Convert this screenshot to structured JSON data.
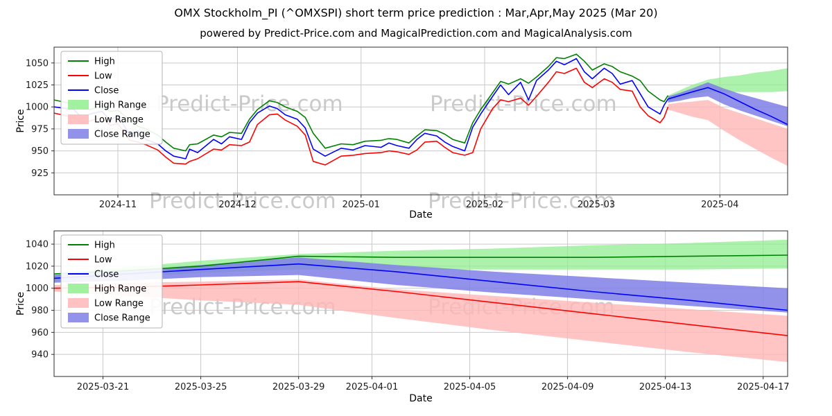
{
  "chart_data": [
    {
      "type": "line",
      "title": "OMX Stockholm_PI (^OMXSPI) short term price prediction : Mar,Apr,May 2025 (Mar 20)",
      "subtitle": "powered by Predict-Price.com and MagicalPrediction.com and MagicalAnalysis.com",
      "watermark": "Predict-Price.com",
      "xlabel": "Date",
      "ylabel": "Price",
      "xlim": [
        "2024-10-16",
        "2025-04-18"
      ],
      "ylim": [
        900,
        1068
      ],
      "yticks": [
        925,
        950,
        975,
        1000,
        1025,
        1050
      ],
      "xticks": [
        {
          "t": "2024-11-01",
          "label": "2024-11"
        },
        {
          "t": "2024-12-01",
          "label": "2024-12"
        },
        {
          "t": "2025-01-01",
          "label": "2025-01"
        },
        {
          "t": "2025-02-01",
          "label": "2025-02"
        },
        {
          "t": "2025-03-01",
          "label": "2025-03"
        },
        {
          "t": "2025-04-01",
          "label": "2025-04"
        }
      ],
      "grid": true,
      "legend_position": "upper left",
      "legend": [
        {
          "label": "High",
          "swatch": "line",
          "color": "#008000"
        },
        {
          "label": "Low",
          "swatch": "line",
          "color": "#ff0000"
        },
        {
          "label": "Close",
          "swatch": "line",
          "color": "#0000ff"
        },
        {
          "label": "High Range",
          "swatch": "patch",
          "color": "#90ee90"
        },
        {
          "label": "Low Range",
          "swatch": "patch",
          "color": "#ffb6b6"
        },
        {
          "label": "Close Range",
          "swatch": "patch",
          "color": "#7f7fe8"
        }
      ],
      "series": [
        {
          "name": "High Range",
          "kind": "band",
          "color": "#90ee90",
          "opacity": 0.75,
          "x": [
            "2025-03-19",
            "2025-03-22",
            "2025-03-25",
            "2025-03-29",
            "2025-04-02",
            "2025-04-06",
            "2025-04-10",
            "2025-04-14",
            "2025-04-18"
          ],
          "upper": [
            1013,
            1019,
            1025,
            1031,
            1034,
            1036,
            1039,
            1041,
            1044
          ],
          "lower": [
            1006,
            1010,
            1014,
            1017,
            1017,
            1017,
            1017,
            1017,
            1018
          ]
        },
        {
          "name": "Low Range",
          "kind": "band",
          "color": "#ffb6b6",
          "opacity": 0.8,
          "x": [
            "2025-03-19",
            "2025-03-22",
            "2025-03-25",
            "2025-03-29",
            "2025-04-02",
            "2025-04-06",
            "2025-04-10",
            "2025-04-14",
            "2025-04-18"
          ],
          "upper": [
            1003,
            1005,
            1006,
            1008,
            999,
            993,
            987,
            981,
            975
          ],
          "lower": [
            997,
            993,
            989,
            985,
            973,
            962,
            952,
            942,
            933
          ]
        },
        {
          "name": "Close Range",
          "kind": "band",
          "color": "#7f7fe8",
          "opacity": 0.85,
          "x": [
            "2025-03-19",
            "2025-03-22",
            "2025-03-25",
            "2025-03-29",
            "2025-04-02",
            "2025-04-06",
            "2025-04-10",
            "2025-04-14",
            "2025-04-18"
          ],
          "upper": [
            1012,
            1016,
            1021,
            1028,
            1021,
            1015,
            1010,
            1005,
            1000
          ],
          "lower": [
            1005,
            1007,
            1010,
            1012,
            1003,
            996,
            990,
            984,
            978
          ]
        },
        {
          "name": "High",
          "kind": "line",
          "color": "#008000",
          "x": [
            "2024-10-16",
            "2024-10-21",
            "2024-10-23",
            "2024-10-25",
            "2024-10-28",
            "2024-10-30",
            "2024-11-01",
            "2024-11-04",
            "2024-11-06",
            "2024-11-08",
            "2024-11-11",
            "2024-11-13",
            "2024-11-15",
            "2024-11-18",
            "2024-11-19",
            "2024-11-21",
            "2024-11-25",
            "2024-11-27",
            "2024-11-29",
            "2024-12-02",
            "2024-12-04",
            "2024-12-06",
            "2024-12-09",
            "2024-12-11",
            "2024-12-13",
            "2024-12-16",
            "2024-12-18",
            "2024-12-20",
            "2024-12-23",
            "2024-12-27",
            "2024-12-30",
            "2025-01-02",
            "2025-01-06",
            "2025-01-08",
            "2025-01-10",
            "2025-01-13",
            "2025-01-15",
            "2025-01-17",
            "2025-01-20",
            "2025-01-22",
            "2025-01-24",
            "2025-01-27",
            "2025-01-29",
            "2025-01-31",
            "2025-02-03",
            "2025-02-05",
            "2025-02-07",
            "2025-02-10",
            "2025-02-12",
            "2025-02-14",
            "2025-02-17",
            "2025-02-19",
            "2025-02-21",
            "2025-02-24",
            "2025-02-26",
            "2025-02-28",
            "2025-03-03",
            "2025-03-05",
            "2025-03-07",
            "2025-03-10",
            "2025-03-12",
            "2025-03-14",
            "2025-03-17",
            "2025-03-18",
            "2025-03-19"
          ],
          "y": [
            1008,
            1003,
            1000,
            997,
            1001,
            995,
            996,
            985,
            978,
            975,
            968,
            960,
            953,
            950,
            957,
            958,
            968,
            966,
            971,
            970,
            986,
            997,
            1007,
            1005,
            1000,
            995,
            988,
            970,
            953,
            958,
            957,
            961,
            962,
            964,
            963,
            959,
            967,
            974,
            973,
            969,
            963,
            959,
            982,
            997,
            1016,
            1029,
            1026,
            1032,
            1027,
            1034,
            1046,
            1056,
            1055,
            1060,
            1052,
            1042,
            1049,
            1046,
            1040,
            1035,
            1030,
            1018,
            1008,
            1006,
            1013
          ]
        },
        {
          "name": "Low",
          "kind": "line",
          "color": "#ff0000",
          "x": [
            "2024-10-16",
            "2024-10-21",
            "2024-10-23",
            "2024-10-25",
            "2024-10-28",
            "2024-10-30",
            "2024-11-01",
            "2024-11-04",
            "2024-11-06",
            "2024-11-08",
            "2024-11-11",
            "2024-11-13",
            "2024-11-15",
            "2024-11-18",
            "2024-11-19",
            "2024-11-21",
            "2024-11-25",
            "2024-11-27",
            "2024-11-29",
            "2024-12-02",
            "2024-12-04",
            "2024-12-06",
            "2024-12-09",
            "2024-12-11",
            "2024-12-13",
            "2024-12-16",
            "2024-12-18",
            "2024-12-20",
            "2024-12-23",
            "2024-12-27",
            "2024-12-30",
            "2025-01-02",
            "2025-01-06",
            "2025-01-08",
            "2025-01-10",
            "2025-01-13",
            "2025-01-15",
            "2025-01-17",
            "2025-01-20",
            "2025-01-22",
            "2025-01-24",
            "2025-01-27",
            "2025-01-29",
            "2025-01-31",
            "2025-02-03",
            "2025-02-05",
            "2025-02-07",
            "2025-02-10",
            "2025-02-12",
            "2025-02-14",
            "2025-02-17",
            "2025-02-19",
            "2025-02-21",
            "2025-02-24",
            "2025-02-26",
            "2025-02-28",
            "2025-03-03",
            "2025-03-05",
            "2025-03-07",
            "2025-03-10",
            "2025-03-12",
            "2025-03-14",
            "2025-03-17",
            "2025-03-18",
            "2025-03-19"
          ],
          "y": [
            993,
            988,
            981,
            984,
            988,
            979,
            981,
            962,
            960,
            957,
            951,
            943,
            936,
            935,
            938,
            941,
            952,
            951,
            957,
            956,
            960,
            980,
            991,
            992,
            985,
            978,
            968,
            938,
            934,
            944,
            945,
            947,
            948,
            950,
            949,
            946,
            951,
            960,
            961,
            954,
            948,
            945,
            948,
            975,
            998,
            1008,
            1006,
            1010,
            1002,
            1012,
            1028,
            1040,
            1038,
            1044,
            1028,
            1022,
            1032,
            1028,
            1020,
            1018,
            1000,
            990,
            982,
            988,
            1000
          ]
        },
        {
          "name": "Close",
          "kind": "line",
          "color": "#0000ff",
          "x": [
            "2024-10-16",
            "2024-10-21",
            "2024-10-23",
            "2024-10-25",
            "2024-10-28",
            "2024-10-30",
            "2024-11-01",
            "2024-11-04",
            "2024-11-06",
            "2024-11-08",
            "2024-11-11",
            "2024-11-13",
            "2024-11-15",
            "2024-11-18",
            "2024-11-19",
            "2024-11-21",
            "2024-11-25",
            "2024-11-27",
            "2024-11-29",
            "2024-12-02",
            "2024-12-04",
            "2024-12-06",
            "2024-12-09",
            "2024-12-11",
            "2024-12-13",
            "2024-12-16",
            "2024-12-18",
            "2024-12-20",
            "2024-12-23",
            "2024-12-27",
            "2024-12-30",
            "2025-01-02",
            "2025-01-06",
            "2025-01-08",
            "2025-01-10",
            "2025-01-13",
            "2025-01-15",
            "2025-01-17",
            "2025-01-20",
            "2025-01-22",
            "2025-01-24",
            "2025-01-27",
            "2025-01-29",
            "2025-01-31",
            "2025-02-03",
            "2025-02-05",
            "2025-02-07",
            "2025-02-10",
            "2025-02-12",
            "2025-02-14",
            "2025-02-17",
            "2025-02-19",
            "2025-02-21",
            "2025-02-24",
            "2025-02-26",
            "2025-02-28",
            "2025-03-03",
            "2025-03-05",
            "2025-03-07",
            "2025-03-10",
            "2025-03-12",
            "2025-03-14",
            "2025-03-17",
            "2025-03-18",
            "2025-03-19",
            "2025-03-22",
            "2025-03-25",
            "2025-03-29",
            "2025-04-02",
            "2025-04-06",
            "2025-04-10",
            "2025-04-14",
            "2025-04-18"
          ],
          "y": [
            1000,
            997,
            987,
            992,
            995,
            985,
            990,
            968,
            973,
            963,
            958,
            950,
            944,
            941,
            952,
            948,
            963,
            958,
            966,
            963,
            982,
            993,
            1001,
            998,
            991,
            986,
            976,
            952,
            944,
            953,
            951,
            956,
            954,
            959,
            956,
            953,
            963,
            970,
            967,
            960,
            955,
            950,
            977,
            992,
            1012,
            1025,
            1014,
            1028,
            1008,
            1030,
            1042,
            1052,
            1048,
            1055,
            1040,
            1032,
            1044,
            1038,
            1026,
            1030,
            1015,
            1000,
            992,
            1002,
            1009,
            1013,
            1017,
            1022,
            1015,
            1006,
            997,
            989,
            980
          ]
        }
      ]
    },
    {
      "type": "line",
      "title": "",
      "watermark": "Predict-Price.com",
      "xlabel": "Date",
      "ylabel": "Price",
      "xlim": [
        "2025-03-19",
        "2025-04-18"
      ],
      "ylim": [
        920,
        1052
      ],
      "yticks": [
        940,
        960,
        980,
        1000,
        1020,
        1040
      ],
      "xticks": [
        {
          "t": "2025-03-21",
          "label": "2025-03-21"
        },
        {
          "t": "2025-03-25",
          "label": "2025-03-25"
        },
        {
          "t": "2025-03-29",
          "label": "2025-03-29"
        },
        {
          "t": "2025-04-01",
          "label": "2025-04-01"
        },
        {
          "t": "2025-04-05",
          "label": "2025-04-05"
        },
        {
          "t": "2025-04-09",
          "label": "2025-04-09"
        },
        {
          "t": "2025-04-13",
          "label": "2025-04-13"
        },
        {
          "t": "2025-04-17",
          "label": "2025-04-17"
        }
      ],
      "grid": true,
      "legend_position": "upper left",
      "legend": [
        {
          "label": "High",
          "swatch": "line",
          "color": "#008000"
        },
        {
          "label": "Low",
          "swatch": "line",
          "color": "#ff0000"
        },
        {
          "label": "Close",
          "swatch": "line",
          "color": "#0000ff"
        },
        {
          "label": "High Range",
          "swatch": "patch",
          "color": "#90ee90"
        },
        {
          "label": "Low Range",
          "swatch": "patch",
          "color": "#ffb6b6"
        },
        {
          "label": "Close Range",
          "swatch": "patch",
          "color": "#7f7fe8"
        }
      ],
      "series": [
        {
          "name": "High Range",
          "kind": "band",
          "color": "#90ee90",
          "opacity": 0.75,
          "x": [
            "2025-03-19",
            "2025-03-22",
            "2025-03-25",
            "2025-03-29",
            "2025-04-02",
            "2025-04-06",
            "2025-04-10",
            "2025-04-14",
            "2025-04-18"
          ],
          "upper": [
            1013,
            1019,
            1025,
            1031,
            1034,
            1036,
            1039,
            1041,
            1044
          ],
          "lower": [
            1006,
            1010,
            1014,
            1017,
            1017,
            1017,
            1017,
            1017,
            1018
          ]
        },
        {
          "name": "Low Range",
          "kind": "band",
          "color": "#ffb6b6",
          "opacity": 0.8,
          "x": [
            "2025-03-19",
            "2025-03-22",
            "2025-03-25",
            "2025-03-29",
            "2025-04-02",
            "2025-04-06",
            "2025-04-10",
            "2025-04-14",
            "2025-04-18"
          ],
          "upper": [
            1003,
            1005,
            1006,
            1008,
            999,
            993,
            987,
            981,
            975
          ],
          "lower": [
            997,
            993,
            989,
            985,
            973,
            962,
            952,
            942,
            933
          ]
        },
        {
          "name": "Close Range",
          "kind": "band",
          "color": "#7f7fe8",
          "opacity": 0.85,
          "x": [
            "2025-03-19",
            "2025-03-22",
            "2025-03-25",
            "2025-03-29",
            "2025-04-02",
            "2025-04-06",
            "2025-04-10",
            "2025-04-14",
            "2025-04-18"
          ],
          "upper": [
            1012,
            1016,
            1021,
            1028,
            1021,
            1015,
            1010,
            1005,
            1000
          ],
          "lower": [
            1005,
            1007,
            1010,
            1012,
            1003,
            996,
            990,
            984,
            978
          ]
        },
        {
          "name": "High",
          "kind": "line",
          "color": "#008000",
          "x": [
            "2025-03-19",
            "2025-03-22",
            "2025-03-25",
            "2025-03-29",
            "2025-04-02",
            "2025-04-06",
            "2025-04-10",
            "2025-04-14",
            "2025-04-18"
          ],
          "y": [
            1013,
            1016,
            1020,
            1029,
            1028,
            1028,
            1028,
            1029,
            1030
          ]
        },
        {
          "name": "Low",
          "kind": "line",
          "color": "#ff0000",
          "x": [
            "2025-03-19",
            "2025-03-22",
            "2025-03-25",
            "2025-03-29",
            "2025-04-02",
            "2025-04-06",
            "2025-04-10",
            "2025-04-14",
            "2025-04-18"
          ],
          "y": [
            1000,
            1001,
            1003,
            1006,
            997,
            987,
            977,
            967,
            957
          ]
        },
        {
          "name": "Close",
          "kind": "line",
          "color": "#0000ff",
          "x": [
            "2025-03-19",
            "2025-03-22",
            "2025-03-25",
            "2025-03-29",
            "2025-04-02",
            "2025-04-06",
            "2025-04-10",
            "2025-04-14",
            "2025-04-18"
          ],
          "y": [
            1009,
            1013,
            1017,
            1022,
            1015,
            1006,
            997,
            989,
            980
          ]
        }
      ]
    }
  ]
}
